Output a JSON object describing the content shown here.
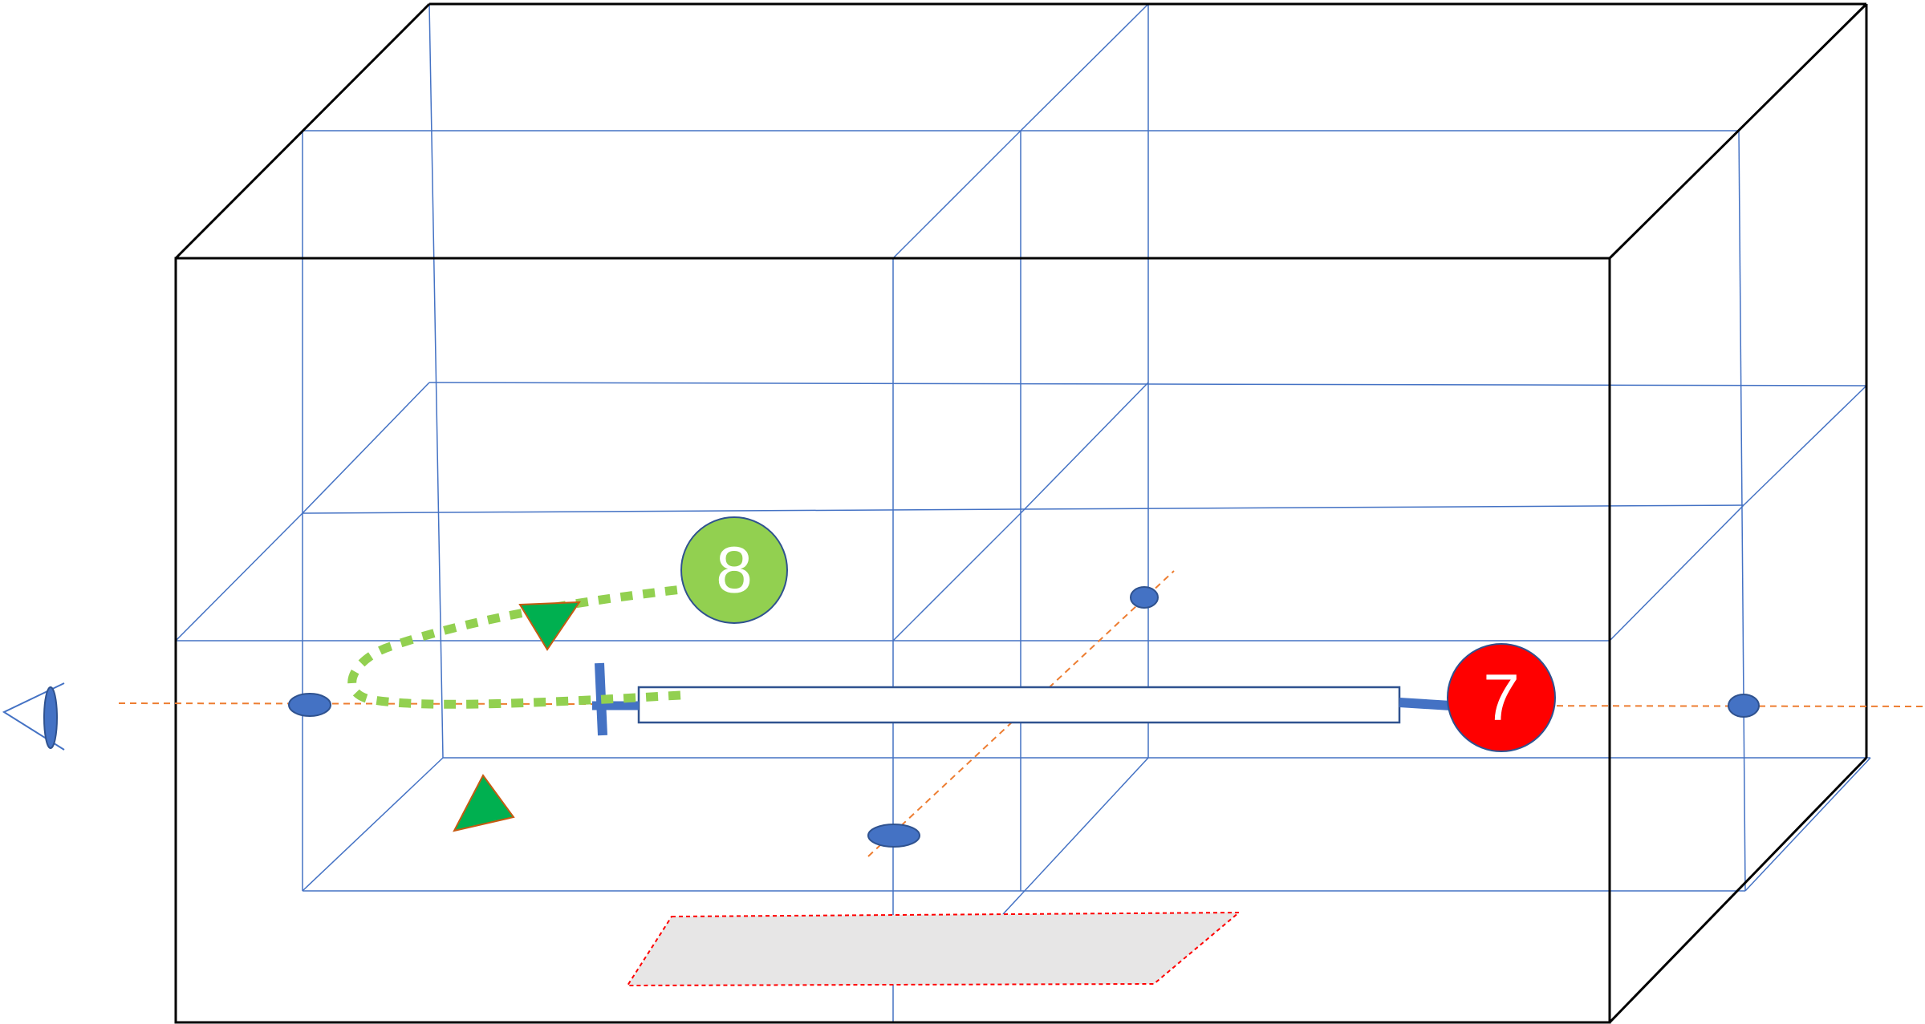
{
  "diagram": {
    "badges": [
      {
        "label": "8",
        "color": "#92d050"
      },
      {
        "label": "7",
        "color": "#ff0000"
      }
    ],
    "colors": {
      "box_edges": "#000000",
      "grid_lines": "#4472c4",
      "axis_line": "#ed7d31",
      "nodes": "#4472c4",
      "path": "#92d050",
      "arrow_markers": "#00b050",
      "floor_patch_fill": "#e7e6e6",
      "floor_patch_border": "#ff0000"
    },
    "icons": [
      "eye-icon",
      "arrow-triangle-icon"
    ]
  }
}
